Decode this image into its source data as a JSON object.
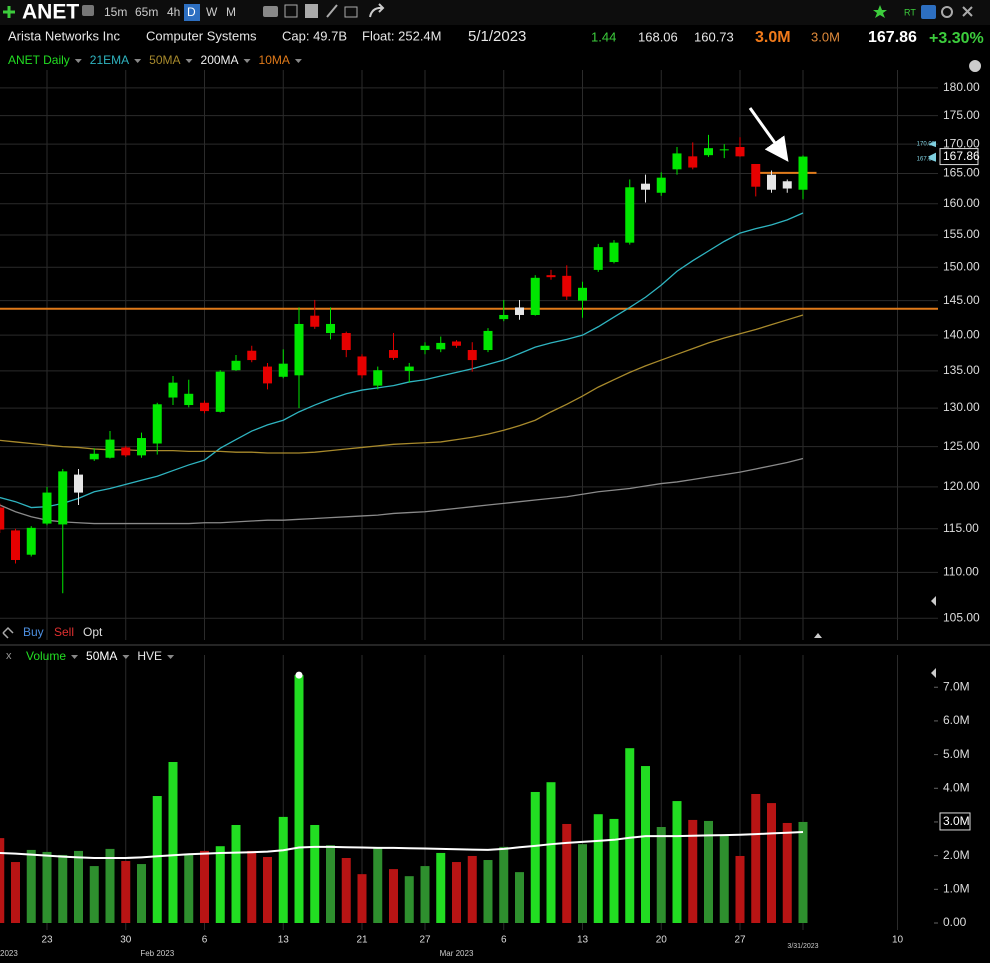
{
  "header": {
    "symbol": "ANET",
    "timeframes": [
      "15m",
      "65m",
      "4h",
      "D",
      "W",
      "M"
    ],
    "rt": "RT",
    "company": "Arista Networks Inc",
    "industry": "Computer Systems",
    "cap": "Cap: 49.7B",
    "float": "Float: 252.4M",
    "date": "5/1/2023",
    "stats": [
      "1.44",
      "168.06",
      "160.73"
    ],
    "volume": "3.0M",
    "avg_volume": "3.0M",
    "price": "167.86",
    "change": "+3.30%",
    "order": [
      "Buy",
      "Sell",
      "Opt"
    ],
    "panel_close": "x"
  },
  "chart_data": [
    {
      "type": "candlestick",
      "log_scale": true,
      "grid": true,
      "ylim": [
        102.7,
        183.3
      ],
      "yticks": [
        {
          "value": 105,
          "label": "105.00"
        },
        {
          "value": 110,
          "label": "110.00"
        },
        {
          "value": 115,
          "label": "115.00"
        },
        {
          "value": 120,
          "label": "120.00"
        },
        {
          "value": 125,
          "label": "125.00"
        },
        {
          "value": 130,
          "label": "130.00"
        },
        {
          "value": 135,
          "label": "135.00"
        },
        {
          "value": 140,
          "label": "140.00"
        },
        {
          "value": 145,
          "label": "145.00"
        },
        {
          "value": 150,
          "label": "150.00"
        },
        {
          "value": 155,
          "label": "155.00"
        },
        {
          "value": 160,
          "label": "160.00"
        },
        {
          "value": 165,
          "label": "165.00"
        },
        {
          "value": 170,
          "label": "170.00"
        },
        {
          "value": 175,
          "label": "175.00"
        },
        {
          "value": 180,
          "label": "180.00"
        }
      ],
      "markers": [
        {
          "value": 170,
          "label": "170.00"
        },
        {
          "value": 167.5,
          "label": "167.50"
        }
      ],
      "last_price": {
        "value": 167.86,
        "label": "167.86"
      },
      "hlines": [
        {
          "value": 143.8,
          "color": "#e07a1a"
        },
        {
          "value": 165.1,
          "color": "#e07a1a"
        }
      ],
      "series": [
        {
          "name": "ANET Daily",
          "color": "#22dd22",
          "open": [
            117.5,
            114.8,
            112,
            115.6,
            115.5,
            121.5,
            123.4,
            123.6,
            124.9,
            123.9,
            125.4,
            131.4,
            130.4,
            130.7,
            129.5,
            135.1,
            137.8,
            135.6,
            134.2,
            134.4,
            142.8,
            140.3,
            140.3,
            137,
            133,
            137.9,
            135,
            137.9,
            138,
            139.1,
            137.9,
            137.9,
            142.3,
            142.9,
            142.9,
            148.8,
            148.7,
            145,
            149.6,
            150.8,
            153.8,
            162.3,
            161.8,
            165.7,
            167.9,
            168.1,
            169,
            169.5,
            166.6,
            164.8,
            163.7,
            162.3,
            null,
            null,
            null,
            null,
            null,
            null,
            null,
            null
          ],
          "high": [
            118,
            115,
            115.3,
            120,
            122.2,
            122.2,
            124.8,
            127,
            125.1,
            126.8,
            130.7,
            134.3,
            133.8,
            131,
            135.1,
            137.2,
            138.5,
            136.1,
            138,
            144,
            145.1,
            144,
            140.5,
            137.3,
            135.6,
            140.3,
            136.1,
            139,
            139.8,
            139.3,
            139,
            141,
            145.1,
            145.1,
            148.8,
            149.6,
            150.3,
            147.8,
            153.6,
            154.2,
            164,
            164.8,
            165.2,
            169.5,
            170.3,
            171.6,
            170,
            171.2,
            166.6,
            165.5,
            164,
            168.06,
            null,
            null,
            null,
            null,
            null,
            null,
            null,
            null
          ],
          "low": [
            114.5,
            111,
            111.8,
            115.4,
            107.7,
            117.8,
            123.2,
            123.5,
            123.7,
            123.6,
            124,
            130.4,
            130.1,
            129.3,
            129.4,
            135,
            136.2,
            132.5,
            134,
            130,
            140.9,
            139.4,
            136.9,
            134,
            132.5,
            136.5,
            133.4,
            137.3,
            137.6,
            138.2,
            134.9,
            137.6,
            142,
            142.2,
            142.8,
            148.1,
            145.1,
            142.5,
            149.3,
            150.6,
            153.5,
            160.2,
            161.3,
            164.8,
            165.7,
            167.8,
            167.6,
            167.8,
            161.2,
            161.8,
            161.8,
            160.73,
            null,
            null,
            null,
            null,
            null,
            null,
            null,
            null
          ],
          "close": [
            114.9,
            111.4,
            115.1,
            119.3,
            121.9,
            119.3,
            124.1,
            125.9,
            123.9,
            126.1,
            130.5,
            133.4,
            131.9,
            129.6,
            134.9,
            136.4,
            136.5,
            133.3,
            136,
            141.6,
            141.2,
            141.6,
            137.9,
            134.4,
            135.1,
            136.8,
            135.6,
            138.5,
            138.9,
            138.5,
            136.5,
            140.6,
            142.9,
            144,
            148.4,
            148.5,
            145.6,
            146.9,
            153.1,
            153.8,
            162.7,
            163.3,
            164.3,
            168.4,
            166,
            169.3,
            169.1,
            167.9,
            162.8,
            162.3,
            162.5,
            167.86,
            null,
            null,
            null,
            null,
            null,
            null,
            null,
            null
          ],
          "colors": [
            "#e60000",
            "#e60000",
            "#00e600",
            "#00e600",
            "#00e600",
            "#e6e6e6",
            "#00e600",
            "#00e600",
            "#e60000",
            "#00e600",
            "#00e600",
            "#00e600",
            "#00e600",
            "#e60000",
            "#00e600",
            "#00e600",
            "#e60000",
            "#e60000",
            "#00e600",
            "#00e600",
            "#e60000",
            "#00e600",
            "#e60000",
            "#e60000",
            "#00e600",
            "#e60000",
            "#00e600",
            "#00e600",
            "#00e600",
            "#e60000",
            "#e60000",
            "#00e600",
            "#00e600",
            "#e6e6e6",
            "#00e600",
            "#e60000",
            "#e60000",
            "#00e600",
            "#00e600",
            "#00e600",
            "#00e600",
            "#e6e6e6",
            "#00e600",
            "#00e600",
            "#e60000",
            "#00e600",
            "#00e600",
            "#e60000",
            "#e60000",
            "#e6e6e6",
            "#e6e6e6",
            "#00e600",
            null,
            null,
            null,
            null,
            null,
            null,
            null,
            null
          ]
        },
        {
          "name": "21EMA",
          "color": "#2fb4c0",
          "values": [
            118.7,
            118.2,
            117.5,
            117.6,
            118,
            118.6,
            119.4,
            119.8,
            120.3,
            120.8,
            121.3,
            122,
            122.7,
            123.3,
            124.8,
            125.9,
            127,
            127.8,
            128.4,
            129.5,
            130.4,
            131.2,
            131.9,
            132.4,
            132.7,
            133,
            133.5,
            133.8,
            134.3,
            134.8,
            135.3,
            135.9,
            136.5,
            137.4,
            138.3,
            138.9,
            139.4,
            140,
            141.2,
            142.6,
            144,
            145.5,
            147.3,
            149.4,
            151,
            152.5,
            154,
            155.3,
            156,
            156.6,
            157.4,
            158.5,
            null,
            null,
            null,
            null,
            null,
            null,
            null,
            null
          ]
        },
        {
          "name": "50MA",
          "color": "#a88a2c",
          "values": [
            125.8,
            125.6,
            125.4,
            125.2,
            125,
            124.9,
            124.7,
            124.6,
            124.6,
            124.5,
            124.5,
            124.5,
            124.4,
            124.4,
            124.4,
            124.3,
            124.3,
            124.2,
            124.2,
            124.2,
            124.3,
            124.5,
            124.7,
            124.9,
            125.1,
            125.3,
            125.4,
            125.5,
            125.6,
            125.9,
            126.2,
            126.6,
            127.1,
            127.7,
            128.4,
            129.5,
            130.5,
            131.6,
            132.8,
            133.8,
            134.8,
            135.7,
            136.5,
            137.3,
            138.1,
            138.9,
            139.6,
            140.2,
            140.8,
            141.5,
            142.2,
            142.9,
            null,
            null,
            null,
            null,
            null,
            null,
            null,
            null
          ]
        },
        {
          "name": "200MA",
          "color": "#8a8a8a",
          "values": [
            117.8,
            117,
            116.4,
            116,
            115.8,
            115.7,
            115.6,
            115.6,
            115.6,
            115.6,
            115.6,
            115.6,
            115.6,
            115.7,
            115.7,
            115.8,
            115.9,
            116,
            116,
            116.1,
            116.2,
            116.3,
            116.4,
            116.5,
            116.6,
            116.8,
            116.9,
            117,
            117.2,
            117.4,
            117.6,
            117.8,
            118,
            118.2,
            118.4,
            118.6,
            118.8,
            119.1,
            119.4,
            119.6,
            119.8,
            120.1,
            120.4,
            120.6,
            120.9,
            121.2,
            121.5,
            121.8,
            122.2,
            122.6,
            123,
            123.5,
            null,
            null,
            null,
            null,
            null,
            null,
            null,
            null
          ]
        }
      ],
      "legend_extra": [
        {
          "name": "10MA",
          "color": "#e07a1a"
        }
      ]
    },
    {
      "type": "bar",
      "ylim": [
        0,
        7.66
      ],
      "yticks": [
        {
          "value": 0,
          "label": "0.00"
        },
        {
          "value": 1,
          "label": "1.0M"
        },
        {
          "value": 2,
          "label": "2.0M"
        },
        {
          "value": 3,
          "label": "3.0M"
        },
        {
          "value": 4,
          "label": "4.0M"
        },
        {
          "value": 5,
          "label": "5.0M"
        },
        {
          "value": 6,
          "label": "6.0M"
        },
        {
          "value": 7,
          "label": "7.0M"
        }
      ],
      "last_volume": {
        "value": 3.0,
        "label": "3.0M"
      },
      "categories": [
        null,
        null,
        null,
        "23",
        null,
        null,
        null,
        null,
        "30",
        null,
        null,
        null,
        null,
        "6",
        null,
        null,
        null,
        null,
        "13",
        null,
        null,
        null,
        null,
        "21",
        null,
        null,
        null,
        "27",
        null,
        null,
        null,
        null,
        "6",
        null,
        null,
        null,
        null,
        "13",
        null,
        null,
        null,
        null,
        "20",
        null,
        null,
        null,
        null,
        "27",
        null,
        null,
        null,
        "3/31/2023",
        null,
        null,
        null,
        null,
        null,
        "10",
        null,
        null
      ],
      "sublabels": [
        "2023",
        null,
        null,
        null,
        null,
        null,
        null,
        null,
        null,
        null,
        "Feb 2023",
        null,
        null,
        null,
        null,
        null,
        null,
        null,
        null,
        null,
        null,
        null,
        null,
        null,
        null,
        null,
        null,
        null,
        null,
        "Mar 2023",
        null,
        null,
        null,
        null,
        null,
        null,
        null,
        null,
        null,
        null,
        null,
        null,
        null,
        null,
        null,
        null,
        null,
        null,
        null,
        null,
        null,
        null,
        null,
        null,
        null,
        null,
        null,
        null,
        null,
        null
      ],
      "series": [
        {
          "name": "Volume",
          "color": "#22dd22",
          "values": [
            2.52,
            1.81,
            2.17,
            2.11,
            2.02,
            2.14,
            1.69,
            2.2,
            1.84,
            1.75,
            3.77,
            4.78,
            2.02,
            2.14,
            2.28,
            2.91,
            2.14,
            1.96,
            3.15,
            7.36,
            2.91,
            2.31,
            1.93,
            1.45,
            2.23,
            1.6,
            1.39,
            1.69,
            2.08,
            1.81,
            1.99,
            1.87,
            2.26,
            1.51,
            3.89,
            4.18,
            2.94,
            2.34,
            3.23,
            3.09,
            5.19,
            4.66,
            2.85,
            3.62,
            3.06,
            3.03,
            2.61,
            1.99,
            3.83,
            3.56,
            2.97,
            3.0,
            null,
            null,
            null,
            null,
            null,
            null,
            null,
            null
          ],
          "colors": [
            "#b81414",
            "#b81414",
            "#2e8f2e",
            "#2e8f2e",
            "#2e8f2e",
            "#2e8f2e",
            "#2e8f2e",
            "#2e8f2e",
            "#b81414",
            "#2e8f2e",
            "#22dd22",
            "#22dd22",
            "#2e8f2e",
            "#b81414",
            "#22dd22",
            "#22dd22",
            "#b81414",
            "#b81414",
            "#22dd22",
            "#22dd22",
            "#22dd22",
            "#2e8f2e",
            "#b81414",
            "#b81414",
            "#2e8f2e",
            "#b81414",
            "#2e8f2e",
            "#2e8f2e",
            "#22dd22",
            "#b81414",
            "#b81414",
            "#2e8f2e",
            "#2e8f2e",
            "#2e8f2e",
            "#22dd22",
            "#22dd22",
            "#b81414",
            "#2e8f2e",
            "#22dd22",
            "#22dd22",
            "#22dd22",
            "#22dd22",
            "#2e8f2e",
            "#22dd22",
            "#b81414",
            "#2e8f2e",
            "#2e8f2e",
            "#b81414",
            "#b81414",
            "#b81414",
            "#b81414",
            "#2e8f2e",
            null,
            null,
            null,
            null,
            null,
            null,
            null,
            null
          ]
        },
        {
          "name": "50MA",
          "color": "#ffffff",
          "values": [
            2.08,
            2.06,
            2.03,
            2,
            1.97,
            1.95,
            1.93,
            1.93,
            1.93,
            1.95,
            1.98,
            2.01,
            2.04,
            2.06,
            2.08,
            2.09,
            2.1,
            2.12,
            2.16,
            2.24,
            2.26,
            2.26,
            2.25,
            2.24,
            2.23,
            2.23,
            2.22,
            2.21,
            2.2,
            2.19,
            2.18,
            2.17,
            2.2,
            2.25,
            2.29,
            2.34,
            2.38,
            2.41,
            2.44,
            2.47,
            2.53,
            2.58,
            2.58,
            2.58,
            2.59,
            2.6,
            2.61,
            2.62,
            2.64,
            2.66,
            2.68,
            2.7,
            null,
            null,
            null,
            null,
            null,
            null,
            null,
            null
          ]
        }
      ],
      "legend_extra": [
        {
          "name": "HVE",
          "color": "#e6e6e6"
        }
      ]
    }
  ]
}
